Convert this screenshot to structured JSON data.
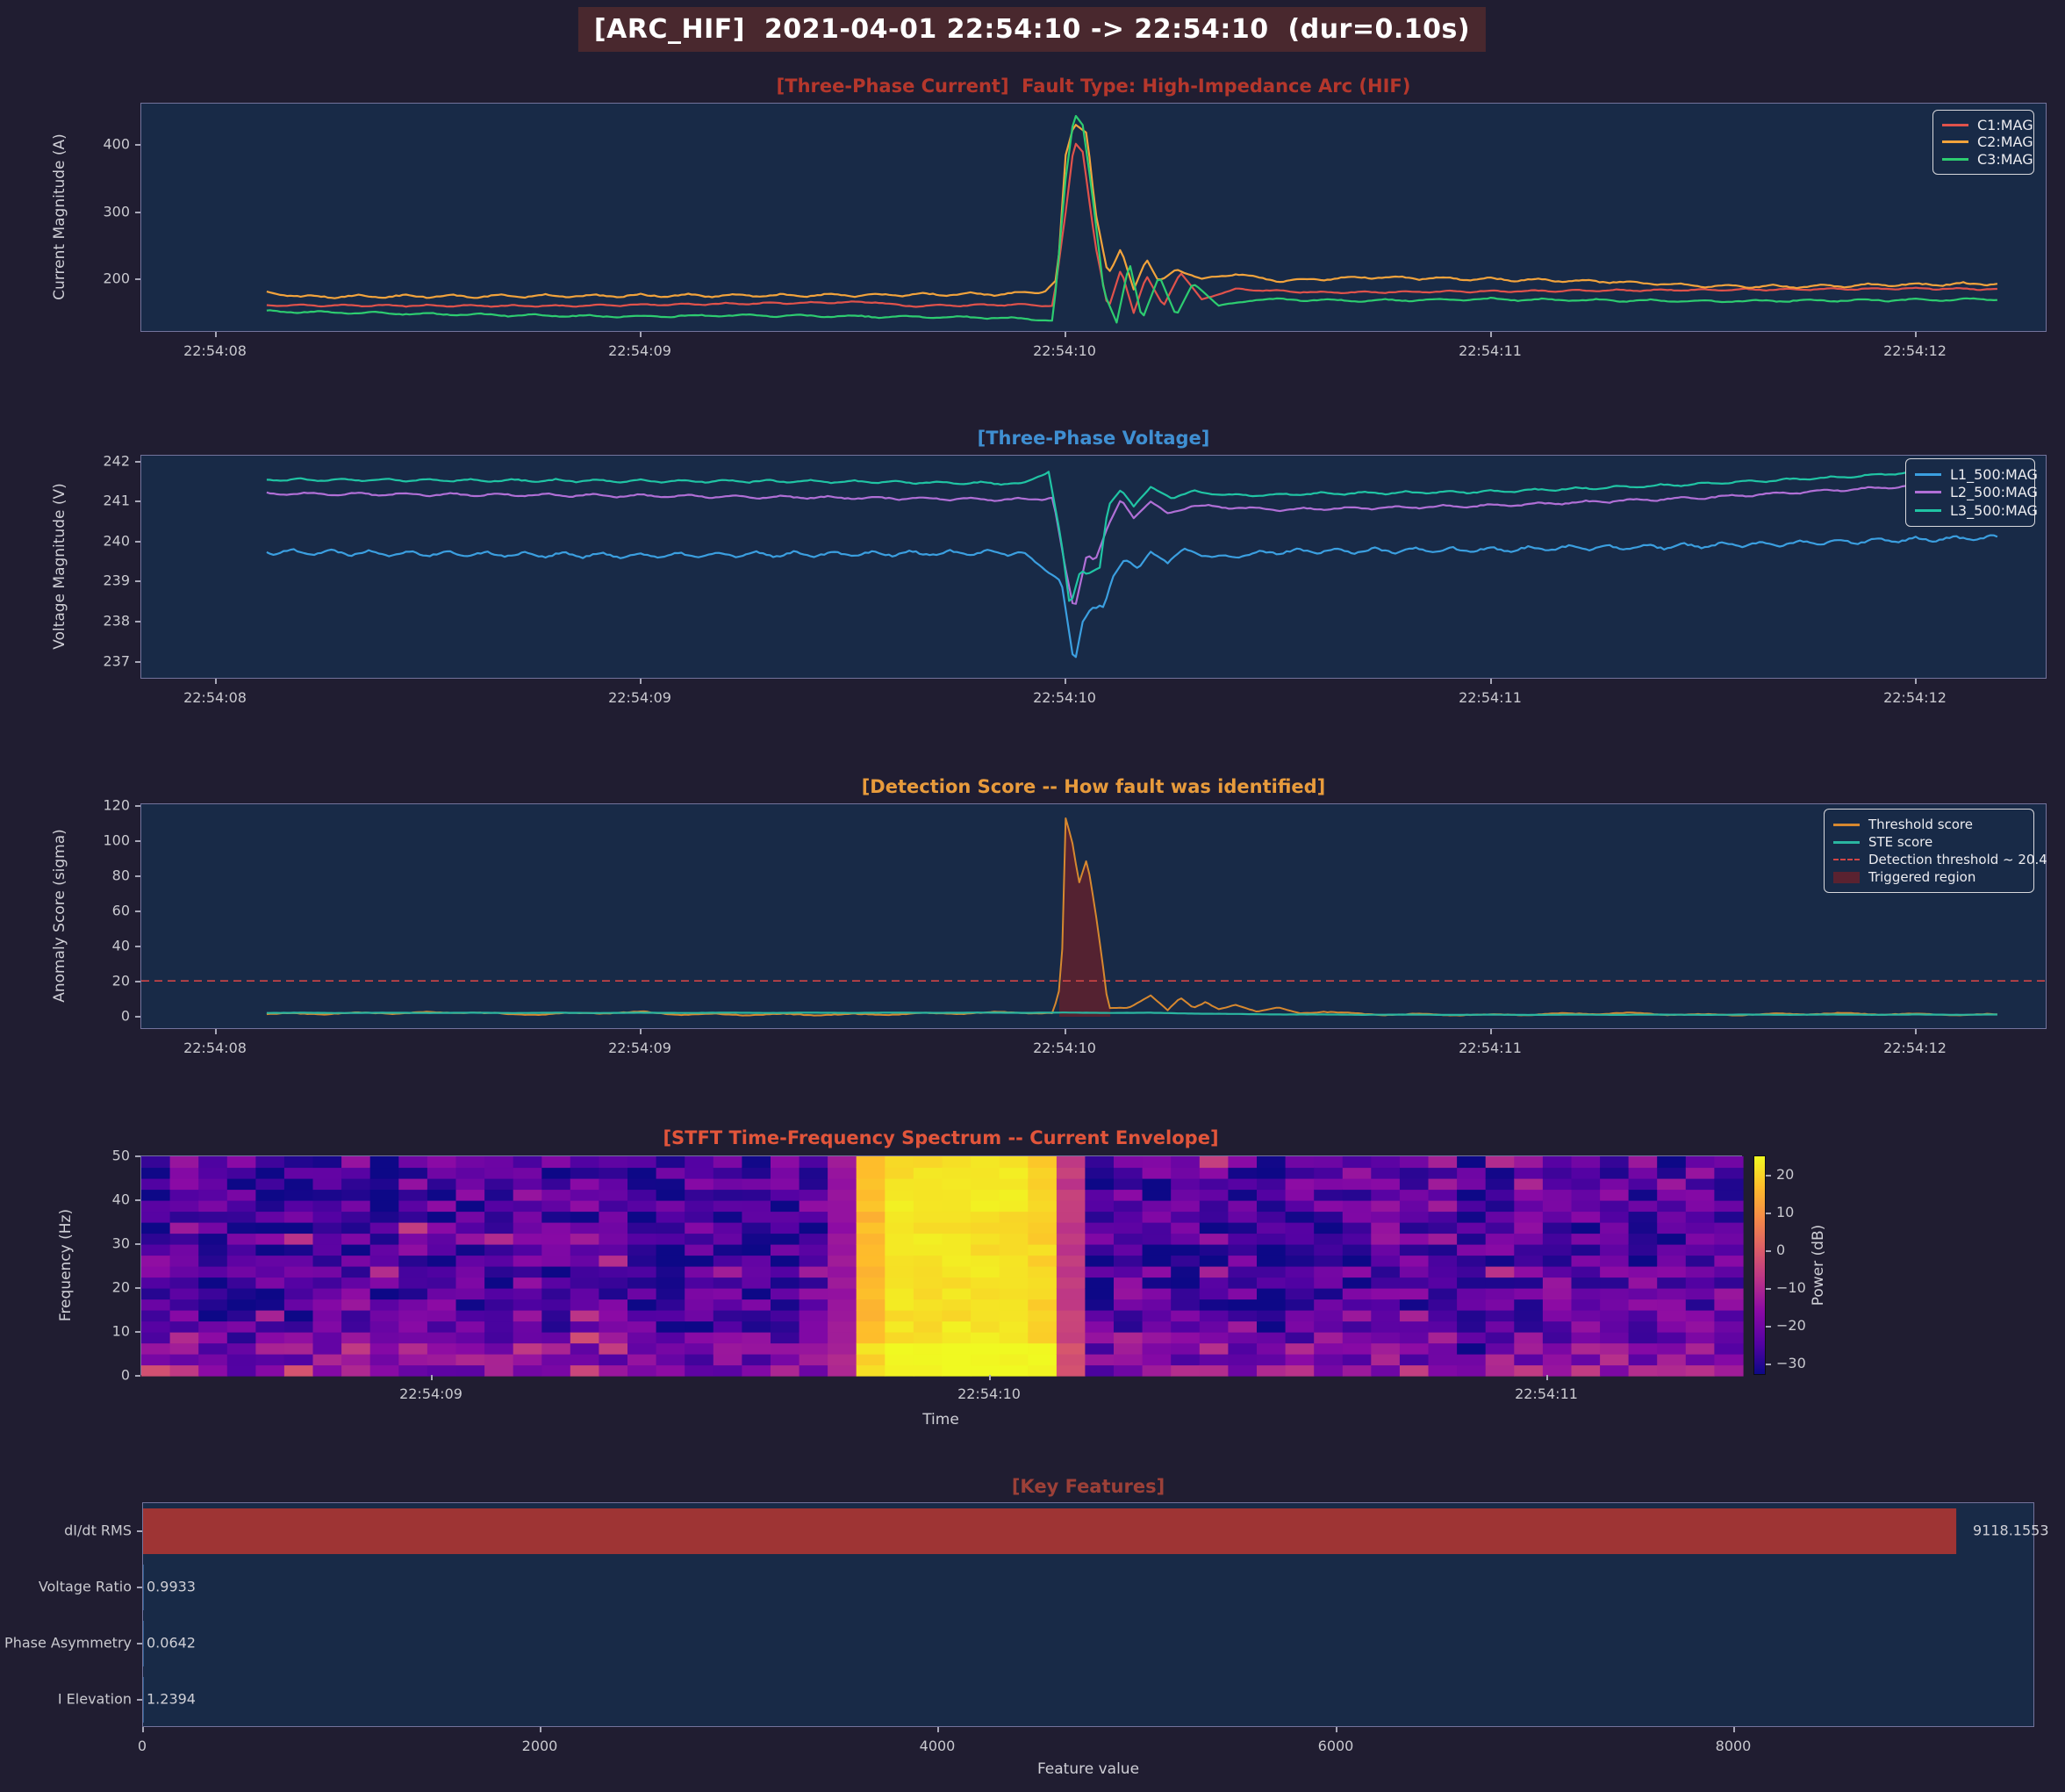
{
  "header": {
    "title": "[ARC_HIF]  2021-04-01 22:54:10 -> 22:54:10  (dur=0.10s)",
    "bg": "#49282e",
    "fg": "#ffffff"
  },
  "chart_data": [
    {
      "id": "current",
      "type": "line",
      "title": "[Three-Phase Current]  Fault Type: High-Impedance Arc (HIF)",
      "title_color": "#b5372c",
      "ylabel": "Current Magnitude (A)",
      "xlim": [
        -0.175,
        4.31
      ],
      "ylim": [
        120,
        462
      ],
      "yticks": [
        200,
        300,
        400
      ],
      "xticks": [
        [
          0,
          "22:54:08"
        ],
        [
          1,
          "22:54:09"
        ],
        [
          2,
          "22:54:10"
        ],
        [
          3,
          "22:54:11"
        ],
        [
          4,
          "22:54:12"
        ]
      ],
      "legend": [
        {
          "label": "C1:MAG",
          "color": "#e0524b",
          "style": "line"
        },
        {
          "label": "C2:MAG",
          "color": "#f2a33c",
          "style": "line"
        },
        {
          "label": "C3:MAG",
          "color": "#2dcc70",
          "style": "line"
        }
      ],
      "series": [
        {
          "name": "C1:MAG",
          "color": "#e0524b",
          "width": 2.2,
          "noise_amp": 1.8,
          "noise_freq": 10,
          "points": [
            [
              0.12,
              161
            ],
            [
              0.8,
              160
            ],
            [
              1.55,
              166
            ],
            [
              1.62,
              160
            ],
            [
              1.9,
              162
            ],
            [
              1.97,
              160
            ],
            [
              2.0,
              300
            ],
            [
              2.02,
              405
            ],
            [
              2.04,
              390
            ],
            [
              2.07,
              250
            ],
            [
              2.1,
              155
            ],
            [
              2.13,
              215
            ],
            [
              2.16,
              150
            ],
            [
              2.19,
              205
            ],
            [
              2.23,
              160
            ],
            [
              2.27,
              210
            ],
            [
              2.32,
              170
            ],
            [
              2.4,
              185
            ],
            [
              2.6,
              180
            ],
            [
              3.0,
              182
            ],
            [
              3.5,
              184
            ],
            [
              4.0,
              186
            ],
            [
              4.2,
              185
            ]
          ]
        },
        {
          "name": "C2:MAG",
          "color": "#f2a33c",
          "width": 2.2,
          "noise_amp": 3.2,
          "noise_freq": 9,
          "points": [
            [
              0.12,
              180
            ],
            [
              0.2,
              174
            ],
            [
              1.5,
              176
            ],
            [
              1.85,
              178
            ],
            [
              1.95,
              181
            ],
            [
              1.98,
              200
            ],
            [
              2.0,
              385
            ],
            [
              2.02,
              432
            ],
            [
              2.05,
              418
            ],
            [
              2.07,
              300
            ],
            [
              2.1,
              205
            ],
            [
              2.13,
              245
            ],
            [
              2.16,
              185
            ],
            [
              2.19,
              230
            ],
            [
              2.22,
              195
            ],
            [
              2.26,
              215
            ],
            [
              2.32,
              200
            ],
            [
              2.4,
              208
            ],
            [
              2.5,
              197
            ],
            [
              2.7,
              203
            ],
            [
              3.0,
              200
            ],
            [
              3.3,
              196
            ],
            [
              3.5,
              190
            ],
            [
              3.7,
              189
            ],
            [
              4.0,
              192
            ],
            [
              4.2,
              193
            ]
          ]
        },
        {
          "name": "C3:MAG",
          "color": "#2dcc70",
          "width": 2.2,
          "noise_amp": 2.4,
          "noise_freq": 8,
          "points": [
            [
              0.12,
              152
            ],
            [
              0.6,
              147
            ],
            [
              1.0,
              144
            ],
            [
              1.2,
              146
            ],
            [
              1.8,
              143
            ],
            [
              1.93,
              140
            ],
            [
              1.97,
              138
            ],
            [
              2.0,
              350
            ],
            [
              2.02,
              447
            ],
            [
              2.04,
              430
            ],
            [
              2.06,
              340
            ],
            [
              2.09,
              180
            ],
            [
              2.12,
              135
            ],
            [
              2.15,
              225
            ],
            [
              2.18,
              140
            ],
            [
              2.22,
              205
            ],
            [
              2.26,
              145
            ],
            [
              2.3,
              195
            ],
            [
              2.36,
              160
            ],
            [
              2.45,
              170
            ],
            [
              2.7,
              168
            ],
            [
              3.0,
              170
            ],
            [
              3.5,
              167
            ],
            [
              4.0,
              169
            ],
            [
              4.2,
              170
            ]
          ]
        }
      ]
    },
    {
      "id": "voltage",
      "type": "line",
      "title": "[Three-Phase Voltage]",
      "title_color": "#3f8fd2",
      "ylabel": "Voltage Magnitude (V)",
      "xlim": [
        -0.175,
        4.31
      ],
      "ylim": [
        236.55,
        242.15
      ],
      "yticks": [
        237,
        238,
        239,
        240,
        241,
        242
      ],
      "xticks": [
        [
          0,
          "22:54:08"
        ],
        [
          1,
          "22:54:09"
        ],
        [
          2,
          "22:54:10"
        ],
        [
          3,
          "22:54:11"
        ],
        [
          4,
          "22:54:12"
        ]
      ],
      "legend": [
        {
          "label": "L1_500:MAG",
          "color": "#3b9fe0",
          "style": "line"
        },
        {
          "label": "L2_500:MAG",
          "color": "#b06fd6",
          "style": "line"
        },
        {
          "label": "L3_500:MAG",
          "color": "#20c4a4",
          "style": "line"
        }
      ],
      "series": [
        {
          "name": "L1_500:MAG",
          "color": "#3b9fe0",
          "width": 2.2,
          "noise_amp": 0.09,
          "noise_freq": 11,
          "points": [
            [
              0.12,
              239.75
            ],
            [
              0.5,
              239.7
            ],
            [
              1.0,
              239.65
            ],
            [
              1.5,
              239.7
            ],
            [
              1.9,
              239.72
            ],
            [
              1.99,
              239.0
            ],
            [
              2.02,
              236.9
            ],
            [
              2.04,
              238.0
            ],
            [
              2.06,
              238.35
            ],
            [
              2.09,
              238.35
            ],
            [
              2.11,
              239.1
            ],
            [
              2.14,
              239.6
            ],
            [
              2.17,
              239.3
            ],
            [
              2.2,
              239.75
            ],
            [
              2.24,
              239.5
            ],
            [
              2.28,
              239.8
            ],
            [
              2.35,
              239.6
            ],
            [
              2.5,
              239.75
            ],
            [
              3.0,
              239.8
            ],
            [
              3.5,
              239.9
            ],
            [
              4.0,
              240.05
            ],
            [
              4.2,
              240.1
            ]
          ]
        },
        {
          "name": "L2_500:MAG",
          "color": "#b06fd6",
          "width": 2.2,
          "noise_amp": 0.05,
          "noise_freq": 9,
          "points": [
            [
              0.12,
              241.2
            ],
            [
              1.0,
              241.15
            ],
            [
              1.9,
              241.05
            ],
            [
              1.97,
              241.1
            ],
            [
              2.0,
              239.3
            ],
            [
              2.02,
              238.25
            ],
            [
              2.05,
              239.7
            ],
            [
              2.07,
              239.55
            ],
            [
              2.1,
              240.4
            ],
            [
              2.13,
              241.05
            ],
            [
              2.16,
              240.6
            ],
            [
              2.2,
              241.0
            ],
            [
              2.24,
              240.7
            ],
            [
              2.3,
              240.9
            ],
            [
              2.5,
              240.8
            ],
            [
              3.0,
              240.9
            ],
            [
              3.5,
              241.1
            ],
            [
              4.0,
              241.4
            ],
            [
              4.2,
              241.5
            ]
          ]
        },
        {
          "name": "L3_500:MAG",
          "color": "#20c4a4",
          "width": 2.2,
          "noise_amp": 0.045,
          "noise_freq": 10,
          "points": [
            [
              0.12,
              241.55
            ],
            [
              1.5,
              241.5
            ],
            [
              1.9,
              241.45
            ],
            [
              1.96,
              241.75
            ],
            [
              1.99,
              240.0
            ],
            [
              2.01,
              238.35
            ],
            [
              2.035,
              239.3
            ],
            [
              2.05,
              239.2
            ],
            [
              2.08,
              239.35
            ],
            [
              2.1,
              240.9
            ],
            [
              2.13,
              241.3
            ],
            [
              2.16,
              240.9
            ],
            [
              2.2,
              241.35
            ],
            [
              2.25,
              241.1
            ],
            [
              2.3,
              241.25
            ],
            [
              2.4,
              241.15
            ],
            [
              2.6,
              241.2
            ],
            [
              3.0,
              241.25
            ],
            [
              3.4,
              241.4
            ],
            [
              3.8,
              241.6
            ],
            [
              4.1,
              241.8
            ],
            [
              4.2,
              241.85
            ]
          ]
        }
      ]
    },
    {
      "id": "score",
      "type": "line",
      "title": "[Detection Score -- How fault was identified]",
      "title_color": "#e89b3c",
      "ylabel": "Anomaly Score (sigma)",
      "xlim": [
        -0.175,
        4.31
      ],
      "ylim": [
        -7.5,
        121
      ],
      "yticks": [
        0,
        20,
        40,
        60,
        80,
        100,
        120
      ],
      "xticks": [
        [
          0,
          "22:54:08"
        ],
        [
          1,
          "22:54:09"
        ],
        [
          2,
          "22:54:10"
        ],
        [
          3,
          "22:54:11"
        ],
        [
          4,
          "22:54:12"
        ]
      ],
      "threshold_line": {
        "value": 20.4,
        "color": "#d04545"
      },
      "trigger_region": {
        "t0": 1.985,
        "t1": 2.105,
        "color": "#5a2230"
      },
      "legend": [
        {
          "label": "Threshold score",
          "color": "#d7882f",
          "style": "line"
        },
        {
          "label": "STE score",
          "color": "#2ab5a0",
          "style": "line"
        },
        {
          "label": "Detection threshold ~ 20.4",
          "color": "#d04545",
          "style": "dashed"
        },
        {
          "label": "Triggered region",
          "color": "#5a2230",
          "style": "patch"
        }
      ],
      "series": [
        {
          "name": "Threshold score",
          "color": "#d7882f",
          "width": 2,
          "noise_amp": 0.7,
          "noise_freq": 6,
          "points": [
            [
              0.12,
              1.5
            ],
            [
              0.6,
              2.5
            ],
            [
              0.7,
              1.2
            ],
            [
              1.0,
              2.6
            ],
            [
              1.1,
              1.3
            ],
            [
              1.5,
              1.2
            ],
            [
              1.9,
              2.5
            ],
            [
              1.97,
              2.0
            ],
            [
              1.99,
              20
            ],
            [
              2.0,
              113
            ],
            [
              2.02,
              95
            ],
            [
              2.03,
              75
            ],
            [
              2.05,
              90
            ],
            [
              2.07,
              60
            ],
            [
              2.09,
              25
            ],
            [
              2.1,
              5
            ],
            [
              2.15,
              5
            ],
            [
              2.2,
              12
            ],
            [
              2.24,
              4
            ],
            [
              2.27,
              11
            ],
            [
              2.3,
              5
            ],
            [
              2.33,
              8
            ],
            [
              2.36,
              4
            ],
            [
              2.4,
              7
            ],
            [
              2.45,
              3
            ],
            [
              2.5,
              5
            ],
            [
              2.55,
              2
            ],
            [
              2.6,
              3
            ],
            [
              2.7,
              1.5
            ],
            [
              3.0,
              1
            ],
            [
              3.3,
              2
            ],
            [
              3.5,
              1
            ],
            [
              3.8,
              1.8
            ],
            [
              4.2,
              1
            ]
          ]
        },
        {
          "name": "STE score",
          "color": "#2ab5a0",
          "width": 2.2,
          "noise_amp": 0.12,
          "noise_freq": 5,
          "points": [
            [
              0.12,
              2.2
            ],
            [
              1.0,
              2.2
            ],
            [
              2.0,
              2.3
            ],
            [
              2.2,
              2.2
            ],
            [
              2.4,
              1.5
            ],
            [
              2.6,
              1.2
            ],
            [
              3.0,
              1.1
            ],
            [
              4.2,
              1.2
            ]
          ]
        }
      ]
    },
    {
      "id": "stft",
      "type": "heatmap",
      "title": "[STFT Time-Frequency Spectrum -- Current Envelope]",
      "title_color": "#e2553b",
      "ylabel": "Frequency (Hz)",
      "xlabel": "Time",
      "xlim": [
        0.48,
        3.35
      ],
      "ylim": [
        0,
        50
      ],
      "yticks": [
        0,
        10,
        20,
        30,
        40,
        50
      ],
      "xticks": [
        [
          1,
          "22:54:09"
        ],
        [
          2,
          "22:54:10"
        ],
        [
          3,
          "22:54:11"
        ]
      ],
      "grid": {
        "cols": 56,
        "rows": 20,
        "seed": 7
      },
      "value_range": [
        -33,
        25
      ],
      "base_level": -24,
      "noise_span": 9,
      "burst": {
        "t0": 1.73,
        "t1": 2.16,
        "boost": 46,
        "taper": 0.07
      },
      "low_freq_boost": [
        11,
        8,
        5,
        3
      ],
      "colorbar": {
        "label": "Power (dB)",
        "ticks": [
          [
            20,
            "20"
          ],
          [
            10,
            "10"
          ],
          [
            0,
            "0"
          ],
          [
            -10,
            "−10"
          ],
          [
            -20,
            "−20"
          ],
          [
            -30,
            "−30"
          ]
        ]
      }
    },
    {
      "id": "features",
      "type": "barh",
      "title": "[Key Features]",
      "title_color": "#9c4038",
      "xlabel": "Feature value",
      "categories": [
        "dI/dt RMS",
        "Voltage Ratio",
        "Phase Asymmetry",
        "I Elevation"
      ],
      "values": [
        9118.1553,
        0.9933,
        0.0642,
        1.2394
      ],
      "value_labels": [
        "9118.1553",
        "0.9933",
        "0.0642",
        "1.2394"
      ],
      "bar_color": "#9e3434",
      "xlim": [
        0,
        9515
      ],
      "xticks": [
        [
          0,
          "0"
        ],
        [
          2000,
          "2000"
        ],
        [
          4000,
          "4000"
        ],
        [
          6000,
          "6000"
        ],
        [
          8000,
          "8000"
        ]
      ]
    }
  ]
}
